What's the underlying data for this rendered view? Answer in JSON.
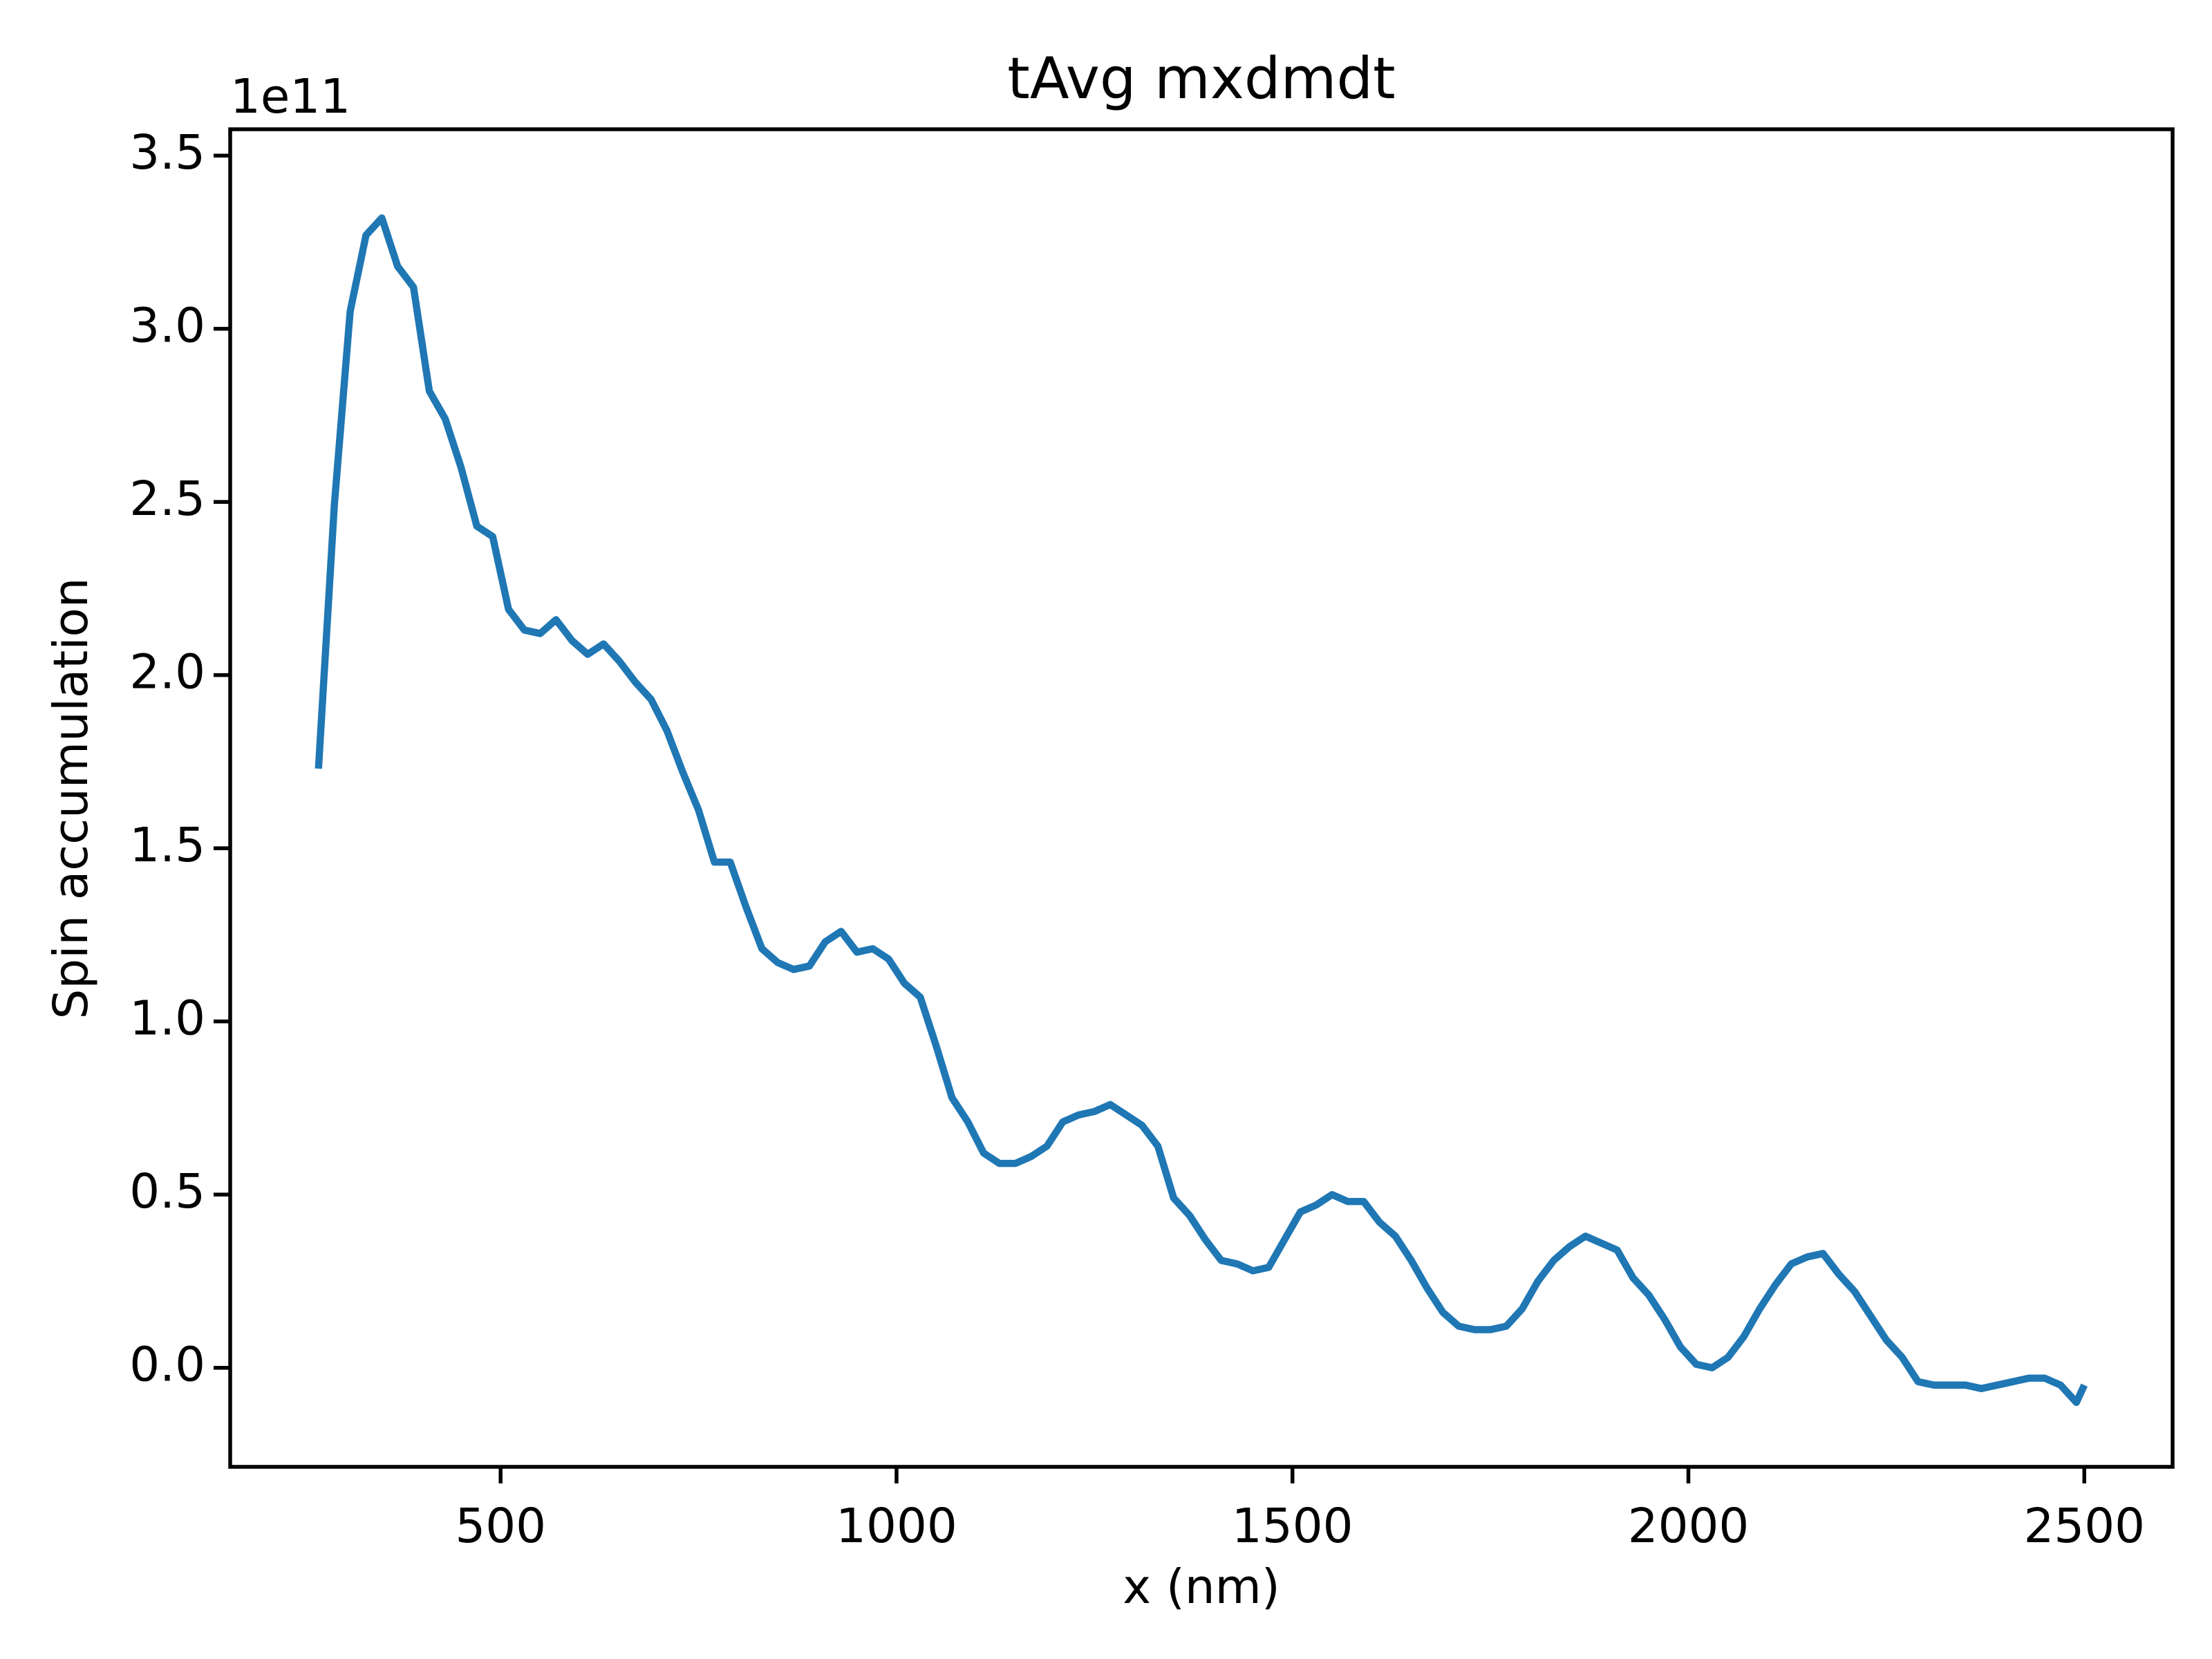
{
  "chart_data": {
    "type": "line",
    "title": "tAvg mxdmdt",
    "x_label": "x (nm)",
    "y_label": "Spin accumulation",
    "y_offset_text": "1e11",
    "x": [
      270,
      290,
      310,
      330,
      350,
      370,
      390,
      410,
      430,
      450,
      470,
      490,
      510,
      530,
      550,
      570,
      590,
      610,
      630,
      650,
      670,
      690,
      710,
      730,
      750,
      770,
      790,
      810,
      830,
      850,
      870,
      890,
      910,
      930,
      950,
      970,
      990,
      1010,
      1030,
      1050,
      1070,
      1090,
      1110,
      1130,
      1150,
      1170,
      1190,
      1210,
      1230,
      1250,
      1270,
      1290,
      1310,
      1330,
      1350,
      1370,
      1390,
      1410,
      1430,
      1450,
      1470,
      1490,
      1510,
      1530,
      1550,
      1570,
      1590,
      1610,
      1630,
      1650,
      1670,
      1690,
      1710,
      1730,
      1750,
      1770,
      1790,
      1810,
      1830,
      1850,
      1870,
      1890,
      1910,
      1930,
      1950,
      1970,
      1990,
      2010,
      2030,
      2050,
      2070,
      2090,
      2110,
      2130,
      2150,
      2170,
      2190,
      2210,
      2230,
      2250,
      2270,
      2290,
      2310,
      2330,
      2350,
      2370,
      2390,
      2410,
      2430,
      2450,
      2470,
      2490,
      2500
    ],
    "series": [
      {
        "color": "#1f77b4",
        "values": [
          1.73,
          2.49,
          3.05,
          3.27,
          3.32,
          3.18,
          3.12,
          2.82,
          2.74,
          2.6,
          2.43,
          2.4,
          2.19,
          2.13,
          2.12,
          2.16,
          2.1,
          2.06,
          2.09,
          2.04,
          1.98,
          1.93,
          1.84,
          1.72,
          1.61,
          1.46,
          1.46,
          1.33,
          1.21,
          1.17,
          1.15,
          1.16,
          1.23,
          1.26,
          1.2,
          1.21,
          1.18,
          1.11,
          1.07,
          0.93,
          0.78,
          0.71,
          0.62,
          0.59,
          0.59,
          0.61,
          0.64,
          0.71,
          0.73,
          0.74,
          0.76,
          0.73,
          0.7,
          0.64,
          0.49,
          0.44,
          0.37,
          0.31,
          0.3,
          0.28,
          0.29,
          0.37,
          0.45,
          0.47,
          0.5,
          0.48,
          0.48,
          0.42,
          0.38,
          0.31,
          0.23,
          0.16,
          0.12,
          0.11,
          0.11,
          0.12,
          0.17,
          0.25,
          0.31,
          0.35,
          0.38,
          0.36,
          0.34,
          0.26,
          0.21,
          0.14,
          0.06,
          0.01,
          0.0,
          0.03,
          0.09,
          0.17,
          0.24,
          0.3,
          0.32,
          0.33,
          0.27,
          0.22,
          0.15,
          0.08,
          0.03,
          -0.04,
          -0.05,
          -0.05,
          -0.05,
          -0.06,
          -0.05,
          -0.04,
          -0.03,
          -0.03,
          -0.05,
          -0.1,
          -0.05
        ]
      }
    ],
    "xlim": [
      158.5,
      2611.5
    ],
    "xticks": [
      500,
      1000,
      1500,
      2000,
      2500
    ],
    "ylim": [
      -0.286,
      3.576
    ],
    "yticks": [
      {
        "value": 0,
        "label": "0.0"
      },
      0.5,
      {
        "value": 1,
        "label": "1.0"
      },
      1.5,
      {
        "value": 2,
        "label": "2.0"
      },
      2.5,
      {
        "value": 3,
        "label": "3.0"
      },
      3.5
    ]
  }
}
